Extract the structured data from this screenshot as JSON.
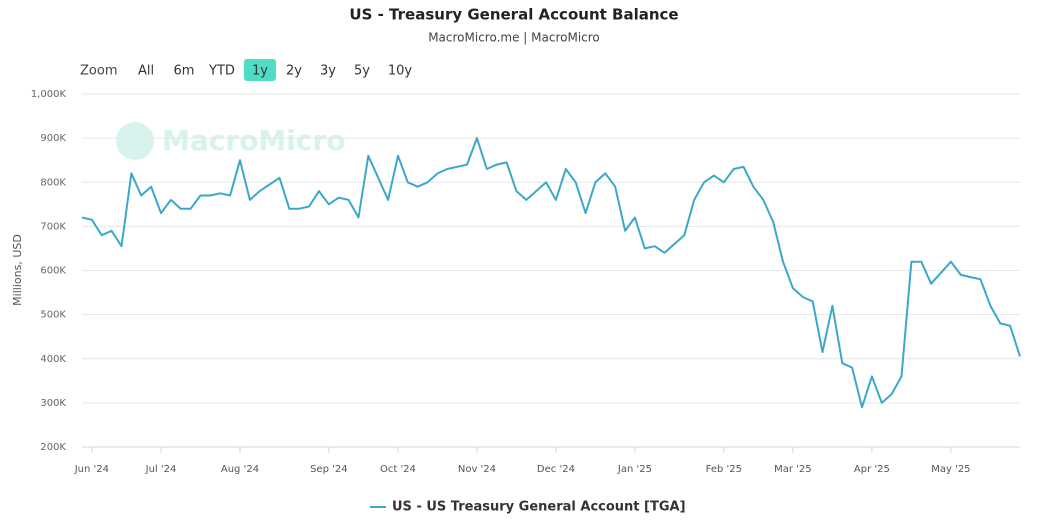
{
  "chart_data": {
    "type": "line",
    "title": "US - Treasury General Account Balance",
    "subtitle": "MacroMicro.me | MacroMicro",
    "watermark": "MacroMicro",
    "range_selector": {
      "label": "Zoom",
      "buttons": [
        "All",
        "6m",
        "YTD",
        "1y",
        "2y",
        "3y",
        "5y",
        "10y"
      ],
      "selected": "1y"
    },
    "y_label": "Millions, USD",
    "ylim": [
      200000,
      1000000
    ],
    "yticks": [
      {
        "value": 200000,
        "label": "200K"
      },
      {
        "value": 300000,
        "label": "300K"
      },
      {
        "value": 400000,
        "label": "400K"
      },
      {
        "value": 500000,
        "label": "500K"
      },
      {
        "value": 600000,
        "label": "600K"
      },
      {
        "value": 700000,
        "label": "700K"
      },
      {
        "value": 800000,
        "label": "800K"
      },
      {
        "value": 900000,
        "label": "900K"
      },
      {
        "value": 1000000,
        "label": "1,000K"
      }
    ],
    "grid": true,
    "categories": [
      null,
      "Jun '24",
      null,
      null,
      null,
      null,
      null,
      null,
      "Jul '24",
      null,
      null,
      null,
      null,
      null,
      null,
      null,
      "Aug '24",
      null,
      null,
      null,
      null,
      null,
      null,
      null,
      null,
      "Sep '24",
      null,
      null,
      null,
      null,
      null,
      null,
      "Oct '24",
      null,
      null,
      null,
      null,
      null,
      null,
      null,
      "Nov '24",
      null,
      null,
      null,
      null,
      null,
      null,
      null,
      "Dec '24",
      null,
      null,
      null,
      null,
      null,
      null,
      null,
      "Jan '25",
      null,
      null,
      null,
      null,
      null,
      null,
      null,
      null,
      "Feb '25",
      null,
      null,
      null,
      null,
      null,
      null,
      "Mar '25",
      null,
      null,
      null,
      null,
      null,
      null,
      null,
      "Apr '25",
      null,
      null,
      null,
      null,
      null,
      null,
      null,
      "May '25",
      null,
      null,
      null,
      null,
      null,
      null,
      null
    ],
    "series": [
      {
        "name": "US - US Treasury General Account [TGA]",
        "color": "#3ba8cb",
        "values": [
          720000,
          715000,
          680000,
          690000,
          655000,
          820000,
          770000,
          790000,
          730000,
          760000,
          740000,
          740000,
          770000,
          770000,
          775000,
          770000,
          850000,
          760000,
          780000,
          795000,
          810000,
          740000,
          740000,
          745000,
          780000,
          750000,
          765000,
          760000,
          720000,
          860000,
          810000,
          760000,
          860000,
          800000,
          790000,
          800000,
          820000,
          830000,
          835000,
          840000,
          900000,
          830000,
          840000,
          845000,
          780000,
          760000,
          780000,
          800000,
          760000,
          830000,
          800000,
          730000,
          800000,
          820000,
          790000,
          690000,
          720000,
          650000,
          655000,
          640000,
          660000,
          680000,
          760000,
          800000,
          815000,
          800000,
          830000,
          835000,
          790000,
          760000,
          710000,
          620000,
          560000,
          540000,
          530000,
          415000,
          520000,
          390000,
          380000,
          290000,
          360000,
          300000,
          320000,
          360000,
          620000,
          620000,
          570000,
          595000,
          620000,
          590000,
          585000,
          580000,
          520000,
          480000,
          475000,
          405000
        ]
      }
    ]
  }
}
